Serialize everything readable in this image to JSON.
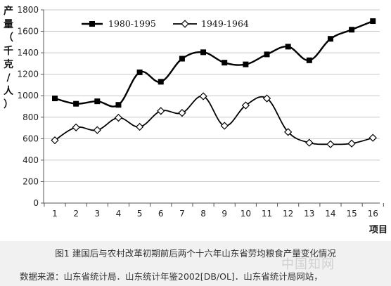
{
  "chart_data": {
    "type": "line",
    "ylabel": "产量（千克/人）",
    "xlabel": "项目",
    "ylim": [
      0,
      1800
    ],
    "yticks": [
      0,
      200,
      400,
      600,
      800,
      1000,
      1200,
      1400,
      1600,
      1800
    ],
    "categories": [
      "1",
      "2",
      "3",
      "4",
      "5",
      "6",
      "7",
      "8",
      "9",
      "10",
      "11",
      "12",
      "13",
      "14",
      "15",
      "16"
    ],
    "grid": "horizontal",
    "legend_position": "top-left",
    "series": [
      {
        "name": "1980-1995",
        "marker": "filled-square",
        "color": "#000000",
        "values": [
          975,
          925,
          948,
          915,
          1218,
          1130,
          1345,
          1405,
          1308,
          1292,
          1385,
          1457,
          1330,
          1530,
          1615,
          1695
        ]
      },
      {
        "name": "1949-1964",
        "marker": "open-diamond",
        "color": "#000000",
        "values": [
          585,
          705,
          680,
          795,
          710,
          858,
          840,
          995,
          720,
          910,
          975,
          662,
          562,
          548,
          555,
          608
        ]
      }
    ]
  },
  "caption": {
    "title": "图1  建国后与农村改革初期前后两个十六年山东省劳均粮食产量变化情况",
    "source": "数据来源：山东省统计局．山东统计年鉴2002[DB/OL]．山东省统计局网站，"
  },
  "watermark": "中国知网"
}
